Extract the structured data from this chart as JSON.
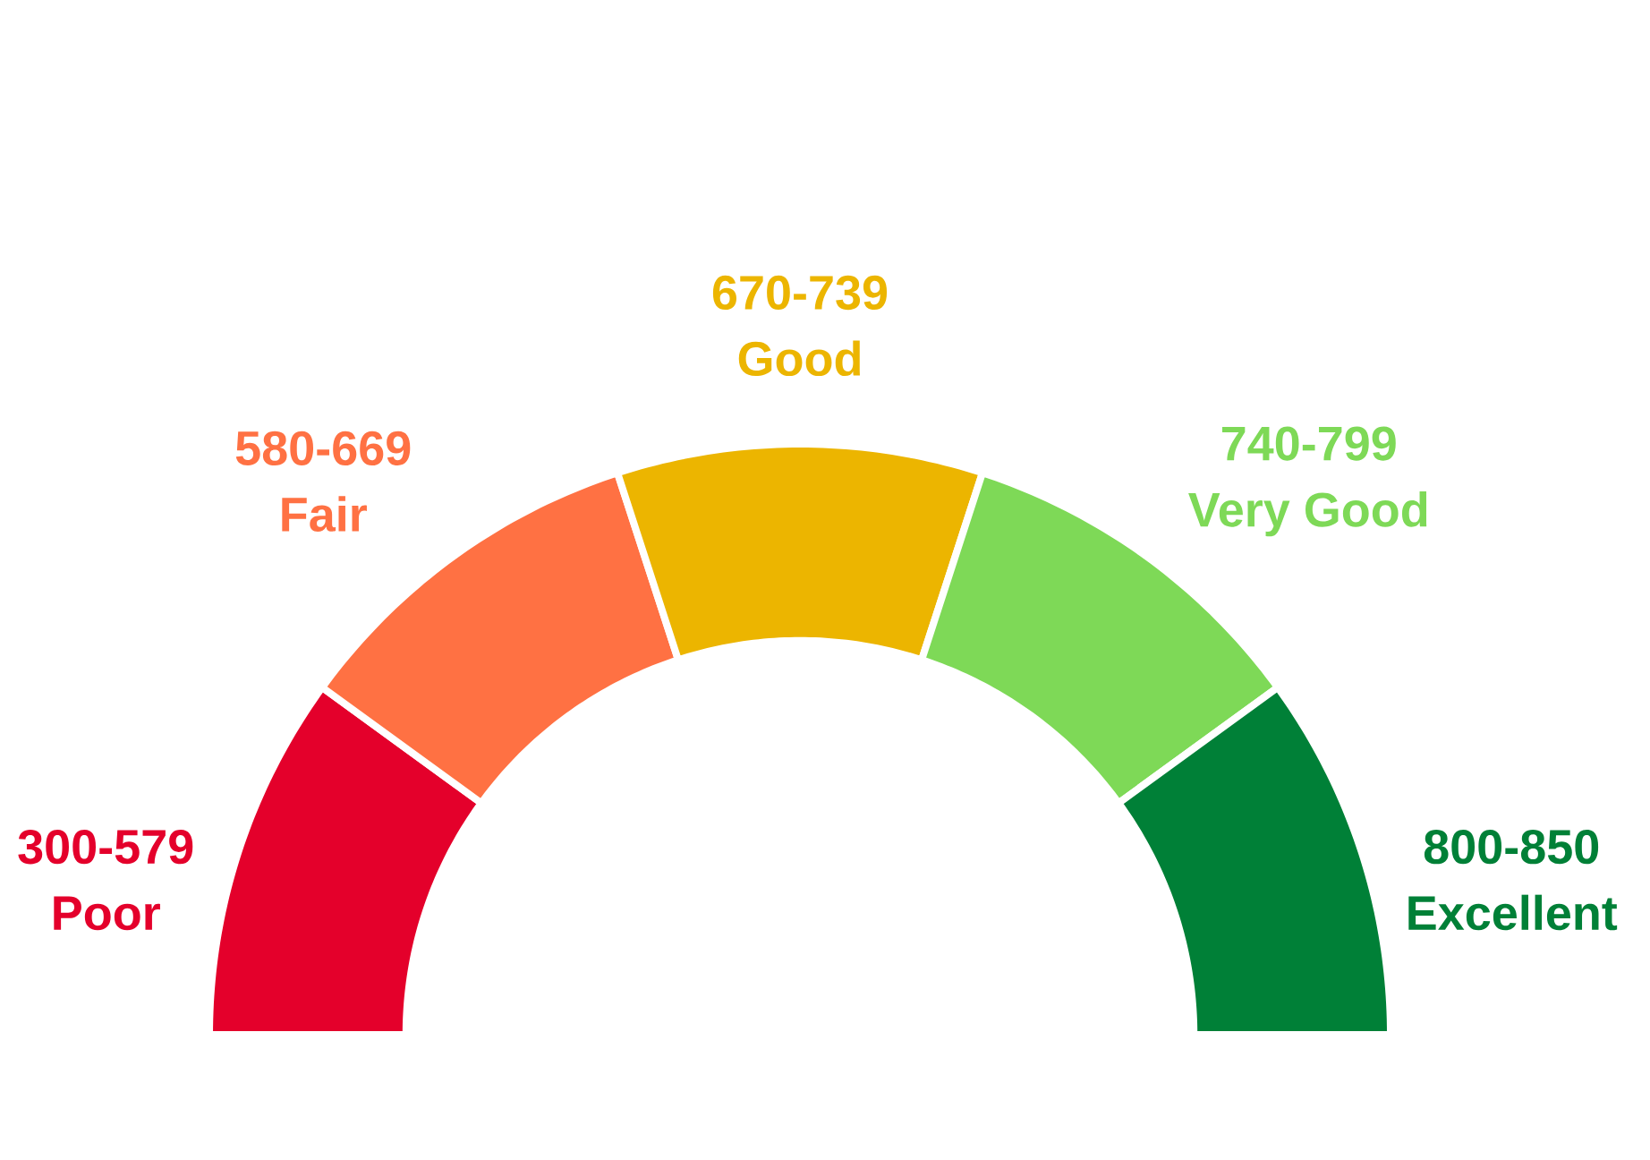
{
  "chart_data": {
    "type": "donut",
    "categories": [
      "300-579 Poor",
      "580-669 Fair",
      "670-739 Good",
      "740-799 Very Good",
      "800-850 Excellent"
    ],
    "values": [
      20,
      20,
      20,
      20,
      20
    ],
    "colors": [
      "#e4002b",
      "#ff7143",
      "#ecb500",
      "#7ed957",
      "#008037"
    ]
  }
}
